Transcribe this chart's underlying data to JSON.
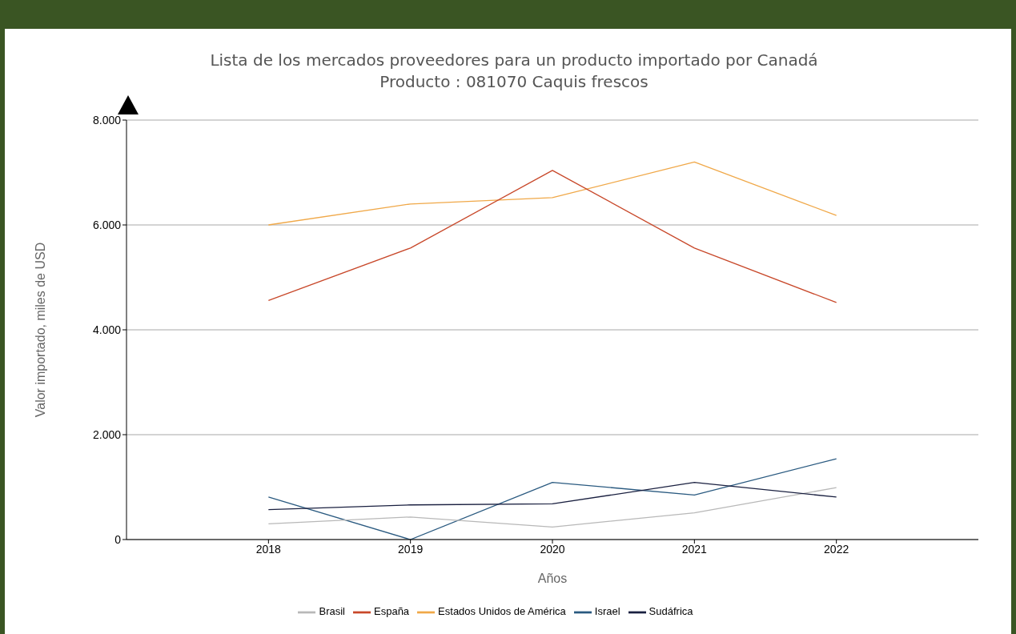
{
  "chart_data": {
    "type": "line",
    "title": "Lista de los mercados proveedores para un producto importado por Canadá",
    "subtitle": "Producto : 081070 Caquis frescos",
    "xlabel": "Años",
    "ylabel": "Valor importado, miles de USD",
    "x": [
      2018,
      2019,
      2020,
      2021,
      2022
    ],
    "series": [
      {
        "name": "Estados Unidos de América",
        "color": "#f0a848",
        "values": [
          6000,
          6400,
          6520,
          7200,
          6180
        ]
      },
      {
        "name": "España",
        "color": "#c8482a",
        "values": [
          4560,
          5560,
          7040,
          5560,
          4520
        ]
      },
      {
        "name": "Israel",
        "color": "#2a5a80",
        "values": [
          810,
          0,
          1090,
          850,
          1540
        ]
      },
      {
        "name": "Brasil",
        "color": "#b8b8b8",
        "values": [
          300,
          430,
          240,
          510,
          990
        ]
      },
      {
        "name": "Sudáfrica",
        "color": "#1a2040",
        "values": [
          570,
          660,
          680,
          1090,
          810
        ]
      }
    ],
    "xlim": [
      2017,
      2023
    ],
    "xticks": [
      2018,
      2019,
      2020,
      2021,
      2022
    ],
    "ylim": [
      0,
      8000
    ],
    "yticks": [
      0,
      {
        "value": 2000,
        "label": "2.000"
      },
      {
        "value": 4000,
        "label": "4.000"
      },
      {
        "value": 6000,
        "label": "6.000"
      },
      {
        "value": 8000,
        "label": "8.000"
      }
    ],
    "grid": "y",
    "legend": "bottom",
    "marker": "none",
    "line_style": "solid"
  }
}
